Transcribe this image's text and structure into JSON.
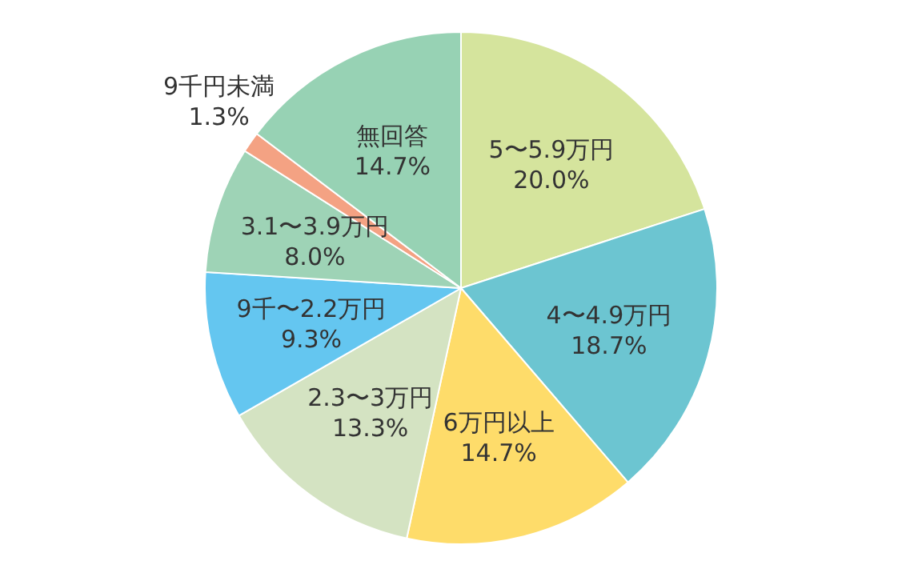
{
  "chart_data": {
    "type": "pie",
    "categories": [
      "5〜5.9万円",
      "4〜4.9万円",
      "6万円以上",
      "2.3〜3万円",
      "9千〜2.2万円",
      "3.1〜3.9万円",
      "9千円未満",
      "無回答"
    ],
    "values": [
      20.0,
      18.7,
      14.7,
      13.3,
      9.3,
      8.0,
      1.3,
      14.7
    ],
    "value_labels": [
      "20.0%",
      "18.7%",
      "14.7%",
      "13.3%",
      "9.3%",
      "8.0%",
      "1.3%",
      "14.7%"
    ],
    "colors": [
      "#d5e49d",
      "#6cc5d1",
      "#fedc6a",
      "#d4e3c2",
      "#64c6f0",
      "#9ed3b6",
      "#f4a283",
      "#97d2b4"
    ],
    "legend": false
  }
}
